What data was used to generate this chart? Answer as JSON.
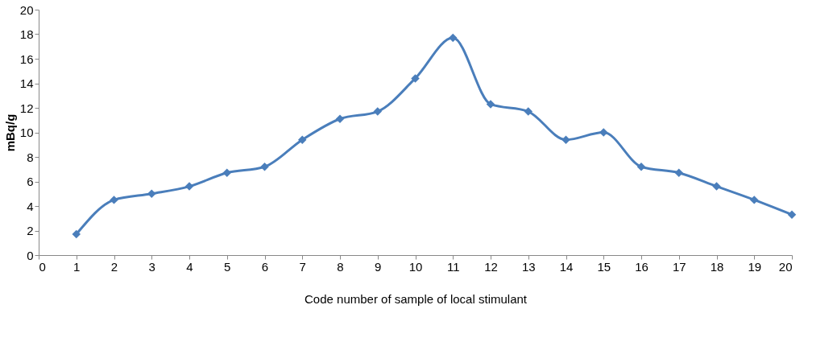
{
  "chart_data": {
    "type": "line",
    "xlabel": "Code number of sample of local stimulant",
    "ylabel": "mBq/g",
    "x": [
      1,
      2,
      3,
      4,
      5,
      6,
      7,
      8,
      9,
      10,
      11,
      12,
      13,
      14,
      15,
      16,
      17,
      18,
      19,
      20
    ],
    "series": [
      {
        "color": "#4a7ebb",
        "values": [
          1.7,
          4.5,
          5.0,
          5.6,
          6.7,
          7.2,
          9.4,
          11.1,
          11.7,
          14.4,
          17.7,
          12.3,
          11.7,
          9.4,
          10.0,
          7.2,
          6.7,
          5.6,
          4.5,
          3.3
        ]
      }
    ],
    "xlim": [
      0,
      20
    ],
    "xticks": [
      0,
      1,
      2,
      3,
      4,
      5,
      6,
      7,
      8,
      9,
      10,
      11,
      12,
      13,
      14,
      15,
      16,
      17,
      18,
      19,
      20
    ],
    "ylim": [
      0,
      20
    ],
    "yticks": [
      0,
      2,
      4,
      6,
      8,
      10,
      12,
      14,
      16,
      18,
      20
    ],
    "grid": false,
    "marker": "diamond",
    "line_style": "solid"
  }
}
